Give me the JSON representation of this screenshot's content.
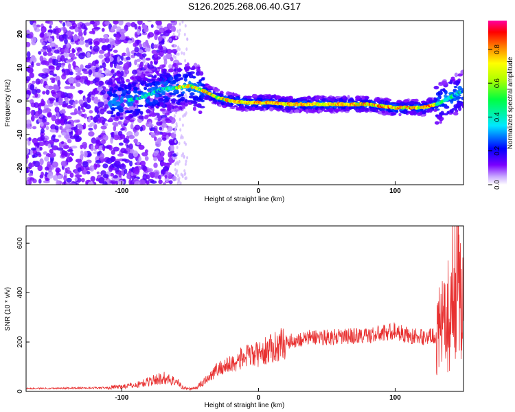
{
  "title": "S126.2025.268.06.40.G17",
  "chart_data": [
    {
      "type": "heatmap",
      "xlabel": "Height of straight line (km)",
      "ylabel": "Frequency (Hz)",
      "xlim": [
        -170,
        150
      ],
      "ylim": [
        -25,
        24
      ],
      "x_ticks": [
        -100,
        0,
        100
      ],
      "y_ticks": [
        -20,
        -10,
        0,
        10,
        20
      ],
      "colorbar": {
        "label": "Normalized spectral amplitude",
        "range": [
          0.0,
          0.97
        ],
        "ticks": [
          0.0,
          0.2,
          0.4,
          0.6,
          0.8
        ]
      },
      "ridge": {
        "x": [
          -100,
          -90,
          -80,
          -70,
          -60,
          -50,
          -40,
          -30,
          -20,
          -10,
          0,
          10,
          20,
          30,
          40,
          50,
          60,
          70,
          80,
          90,
          100,
          110,
          120,
          130,
          140,
          150
        ],
        "frequency": [
          0,
          0.5,
          2,
          3.5,
          4,
          4.5,
          3,
          1,
          0,
          -0.5,
          -0.5,
          -0.5,
          -1,
          -1,
          -1,
          -1,
          -1,
          -1,
          -1,
          -1.5,
          -2,
          -2,
          -2,
          -1,
          1,
          3
        ]
      }
    },
    {
      "type": "line",
      "xlabel": "Height of straight line (km)",
      "ylabel": "SNR (10 * v/v)",
      "xlim": [
        -170,
        150
      ],
      "ylim": [
        0,
        670
      ],
      "x_ticks": [
        -100,
        0,
        100
      ],
      "y_ticks": [
        0,
        200,
        400,
        600
      ],
      "series_color": "#e83030",
      "envelope": {
        "x": [
          -170,
          -140,
          -110,
          -90,
          -80,
          -70,
          -60,
          -55,
          -50,
          -45,
          -40,
          -30,
          -20,
          -10,
          0,
          10,
          20,
          30,
          40,
          60,
          70,
          80,
          90,
          100,
          110,
          120,
          130,
          135,
          140,
          145,
          150
        ],
        "y": [
          12,
          13,
          15,
          25,
          40,
          55,
          40,
          15,
          10,
          15,
          40,
          90,
          110,
          140,
          150,
          175,
          200,
          210,
          220,
          220,
          225,
          225,
          235,
          245,
          225,
          220,
          225,
          260,
          320,
          520,
          330
        ]
      }
    }
  ]
}
